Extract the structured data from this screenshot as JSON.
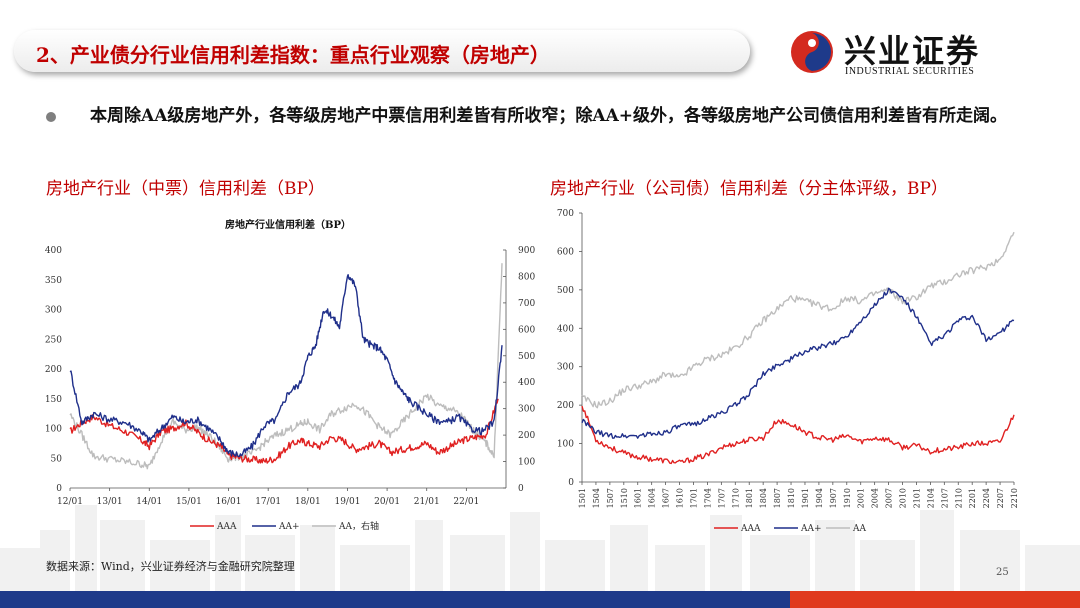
{
  "header": {
    "title": "2、产业债分行业信用利差指数：重点行业观察（房地产）",
    "logo_cn": "兴业证券",
    "logo_en": "INDUSTRIAL SECURITIES"
  },
  "bullet": "本周除AA级房地产外，各等级房地产中票信用利差皆有所收窄；除AA+级外，各等级房地产公司债信用利差皆有所走阔。",
  "left_chart_heading": "房地产行业（中票）信用利差（BP）",
  "right_chart_heading": "房地产行业（公司债）信用利差（分主体评级，BP）",
  "source": "数据来源：Wind，兴业证券经济与金融研究院整理",
  "page_number": "25",
  "colors": {
    "AAA": "#e02020",
    "AAplus": "#1f2f8a",
    "AA": "#bdbdbd",
    "title_red": "#c00000"
  },
  "chart_data": [
    {
      "type": "line",
      "title": "房地产行业信用利差（BP）",
      "x_ticks": [
        "12/01",
        "13/01",
        "14/01",
        "15/01",
        "16/01",
        "17/01",
        "18/01",
        "19/01",
        "20/01",
        "21/01",
        "22/01"
      ],
      "y_left_ticks": [
        "0",
        "50",
        "100",
        "150",
        "200",
        "250",
        "300",
        "350",
        "400"
      ],
      "y_right_ticks": [
        "0",
        "100",
        "200",
        "300",
        "400",
        "500",
        "600",
        "700",
        "800",
        "900"
      ],
      "ylim_left": [
        0,
        400
      ],
      "ylim_right": [
        0,
        900
      ],
      "legend": [
        "AAA",
        "AA+",
        "AA，右轴"
      ],
      "legend_position": "bottom",
      "series": [
        {
          "name": "AAA",
          "axis": "left",
          "x": [
            2012.0,
            2012.3,
            2012.6,
            2013.0,
            2013.4,
            2013.8,
            2014.0,
            2014.3,
            2014.6,
            2014.9,
            2015.2,
            2015.5,
            2015.8,
            2016.0,
            2016.3,
            2016.6,
            2016.9,
            2017.2,
            2017.5,
            2017.8,
            2018.0,
            2018.3,
            2018.6,
            2018.9,
            2019.2,
            2019.5,
            2019.8,
            2020.1,
            2020.4,
            2020.7,
            2021.0,
            2021.3,
            2021.6,
            2021.9,
            2022.2,
            2022.5,
            2022.8
          ],
          "values": [
            95,
            110,
            120,
            105,
            95,
            80,
            70,
            95,
            100,
            110,
            95,
            80,
            70,
            55,
            50,
            48,
            45,
            50,
            70,
            80,
            75,
            70,
            85,
            80,
            65,
            70,
            75,
            60,
            65,
            70,
            75,
            60,
            70,
            80,
            85,
            90,
            150
          ]
        },
        {
          "name": "AA+",
          "axis": "left",
          "x": [
            2012.0,
            2012.3,
            2012.6,
            2013.0,
            2013.4,
            2013.8,
            2014.0,
            2014.3,
            2014.6,
            2014.9,
            2015.2,
            2015.5,
            2015.8,
            2016.0,
            2016.3,
            2016.6,
            2016.9,
            2017.2,
            2017.5,
            2017.8,
            2018.0,
            2018.2,
            2018.4,
            2018.6,
            2018.8,
            2019.0,
            2019.2,
            2019.4,
            2019.6,
            2019.8,
            2020.0,
            2020.2,
            2020.4,
            2020.6,
            2020.9,
            2021.2,
            2021.5,
            2021.8,
            2022.1,
            2022.4,
            2022.7,
            2022.9
          ],
          "values": [
            200,
            110,
            125,
            115,
            110,
            95,
            80,
            100,
            120,
            110,
            115,
            100,
            80,
            60,
            55,
            70,
            105,
            115,
            160,
            175,
            220,
            240,
            300,
            290,
            270,
            360,
            340,
            250,
            240,
            235,
            215,
            180,
            160,
            145,
            130,
            115,
            110,
            120,
            100,
            95,
            110,
            240
          ]
        },
        {
          "name": "AA，右轴",
          "axis": "right",
          "x": [
            2012.0,
            2012.3,
            2012.6,
            2013.0,
            2013.4,
            2013.8,
            2014.0,
            2014.3,
            2014.6,
            2014.9,
            2015.2,
            2015.5,
            2015.8,
            2016.0,
            2016.3,
            2016.6,
            2016.9,
            2017.2,
            2017.5,
            2017.8,
            2018.0,
            2018.3,
            2018.6,
            2018.9,
            2019.2,
            2019.5,
            2019.8,
            2020.1,
            2020.4,
            2020.7,
            2021.0,
            2021.3,
            2021.6,
            2021.9,
            2022.1,
            2022.3,
            2022.5,
            2022.7,
            2022.9
          ],
          "values": [
            280,
            200,
            120,
            110,
            100,
            90,
            80,
            180,
            250,
            220,
            230,
            200,
            150,
            110,
            120,
            130,
            170,
            200,
            220,
            240,
            250,
            220,
            280,
            300,
            320,
            280,
            230,
            200,
            250,
            300,
            350,
            310,
            300,
            270,
            230,
            200,
            170,
            120,
            850
          ]
        }
      ]
    },
    {
      "type": "line",
      "x_ticks": [
        "1501",
        "1504",
        "1507",
        "1510",
        "1601",
        "1604",
        "1607",
        "1610",
        "1701",
        "1704",
        "1707",
        "1710",
        "1801",
        "1804",
        "1807",
        "1810",
        "1901",
        "1904",
        "1907",
        "1910",
        "2001",
        "2004",
        "2007",
        "2010",
        "2101",
        "2104",
        "2107",
        "2110",
        "2201",
        "2204",
        "2207",
        "2210"
      ],
      "y_ticks": [
        "0",
        "100",
        "200",
        "300",
        "400",
        "500",
        "600",
        "700"
      ],
      "ylim": [
        0,
        700
      ],
      "legend": [
        "AAA",
        "AA+",
        "AA"
      ],
      "legend_position": "bottom",
      "series": [
        {
          "name": "AAA",
          "x": [
            0,
            1,
            2,
            3,
            4,
            5,
            6,
            7,
            8,
            9,
            10,
            11,
            12,
            13,
            14,
            15,
            16,
            17,
            18,
            19,
            20,
            21,
            22,
            23,
            24,
            25,
            26,
            27,
            28,
            29,
            30,
            31
          ],
          "values": [
            200,
            110,
            90,
            75,
            65,
            60,
            55,
            50,
            60,
            70,
            90,
            100,
            110,
            115,
            160,
            150,
            130,
            115,
            110,
            120,
            105,
            115,
            110,
            90,
            95,
            80,
            85,
            90,
            100,
            100,
            105,
            175
          ]
        },
        {
          "name": "AA+",
          "x": [
            0,
            1,
            2,
            3,
            4,
            5,
            6,
            7,
            8,
            9,
            10,
            11,
            12,
            13,
            14,
            15,
            16,
            17,
            18,
            19,
            20,
            21,
            22,
            23,
            24,
            25,
            26,
            27,
            28,
            29,
            30,
            31
          ],
          "values": [
            160,
            130,
            120,
            120,
            120,
            125,
            130,
            145,
            150,
            165,
            180,
            200,
            230,
            280,
            305,
            320,
            340,
            350,
            360,
            380,
            420,
            460,
            500,
            480,
            430,
            360,
            380,
            420,
            430,
            370,
            390,
            420
          ]
        },
        {
          "name": "AA",
          "x": [
            0,
            1,
            2,
            3,
            4,
            5,
            6,
            7,
            8,
            9,
            10,
            11,
            12,
            13,
            14,
            15,
            16,
            17,
            18,
            19,
            20,
            21,
            22,
            23,
            24,
            25,
            26,
            27,
            28,
            29,
            30,
            31
          ],
          "values": [
            220,
            200,
            210,
            240,
            250,
            260,
            280,
            270,
            300,
            320,
            330,
            350,
            380,
            420,
            450,
            480,
            470,
            460,
            450,
            480,
            470,
            490,
            500,
            470,
            480,
            510,
            520,
            540,
            550,
            560,
            580,
            650
          ]
        }
      ]
    }
  ]
}
